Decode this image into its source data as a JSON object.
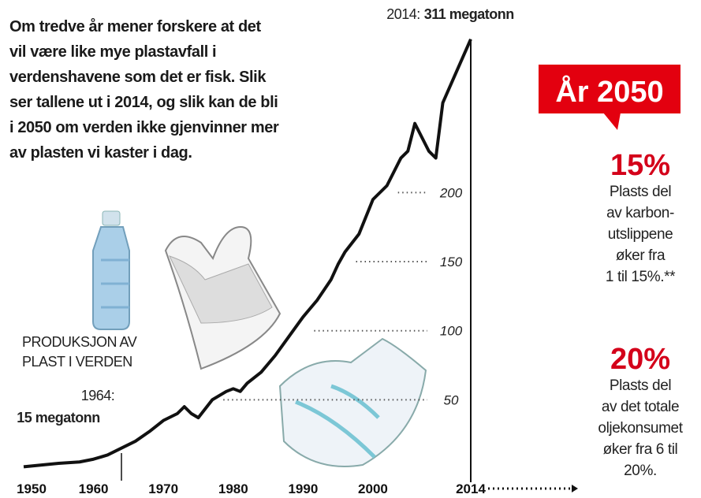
{
  "chart_data": {
    "type": "line",
    "description": [
      "Om tredve år mener forskere at det",
      "vil være like mye plastavfall i",
      "verdenshavene som det er fisk. Slik",
      "ser tallene ut i 2014, og slik kan de bli",
      "i 2050 om verden ikke gjenvinner mer",
      "av plasten vi kaster i dag."
    ],
    "axis_label": [
      "PRODUKSJON AV",
      "PLAST I VERDEN"
    ],
    "x": [
      1950,
      1952,
      1955,
      1958,
      1960,
      1962,
      1964,
      1966,
      1968,
      1970,
      1972,
      1973,
      1974,
      1975,
      1977,
      1979,
      1980,
      1981,
      1982,
      1984,
      1986,
      1988,
      1990,
      1991,
      1992,
      1994,
      1995,
      1996,
      1998,
      2000,
      2002,
      2004,
      2005,
      2006,
      2007,
      2008,
      2009,
      2010,
      2012,
      2014
    ],
    "series": [
      {
        "name": "Produksjon",
        "color": "#111111",
        "values": [
          1.5,
          2.5,
          4,
          5,
          7,
          10,
          15,
          20,
          27,
          35,
          40,
          45,
          40,
          37,
          50,
          56,
          58,
          56,
          62,
          70,
          82,
          96,
          110,
          116,
          122,
          137,
          148,
          157,
          170,
          195,
          205,
          225,
          230,
          250,
          240,
          230,
          225,
          265,
          288,
          311
        ]
      }
    ],
    "xlim": [
      1950,
      2014
    ],
    "xticks": [
      1950,
      1960,
      1970,
      1980,
      1990,
      2000,
      2014
    ],
    "ylim": [
      0,
      320
    ],
    "yticks": [
      50,
      100,
      150,
      200
    ],
    "annotations": [
      {
        "x": 2014,
        "label": "2014:",
        "value_text": "311 megatonn"
      },
      {
        "x": 1964,
        "label": "1964:",
        "value_text": "15 megatonn"
      }
    ],
    "panel": {
      "heading": "År 2050",
      "items": [
        {
          "value_text": "15%",
          "lines": [
            "Plasts del",
            "av karbon-",
            "utslippene",
            "øker fra",
            "1 til 15%.**"
          ]
        },
        {
          "value_text": "20%",
          "lines": [
            "Plasts del",
            "av det totale",
            "oljekonsumet",
            "øker fra 6 til",
            "20%."
          ]
        }
      ]
    }
  }
}
